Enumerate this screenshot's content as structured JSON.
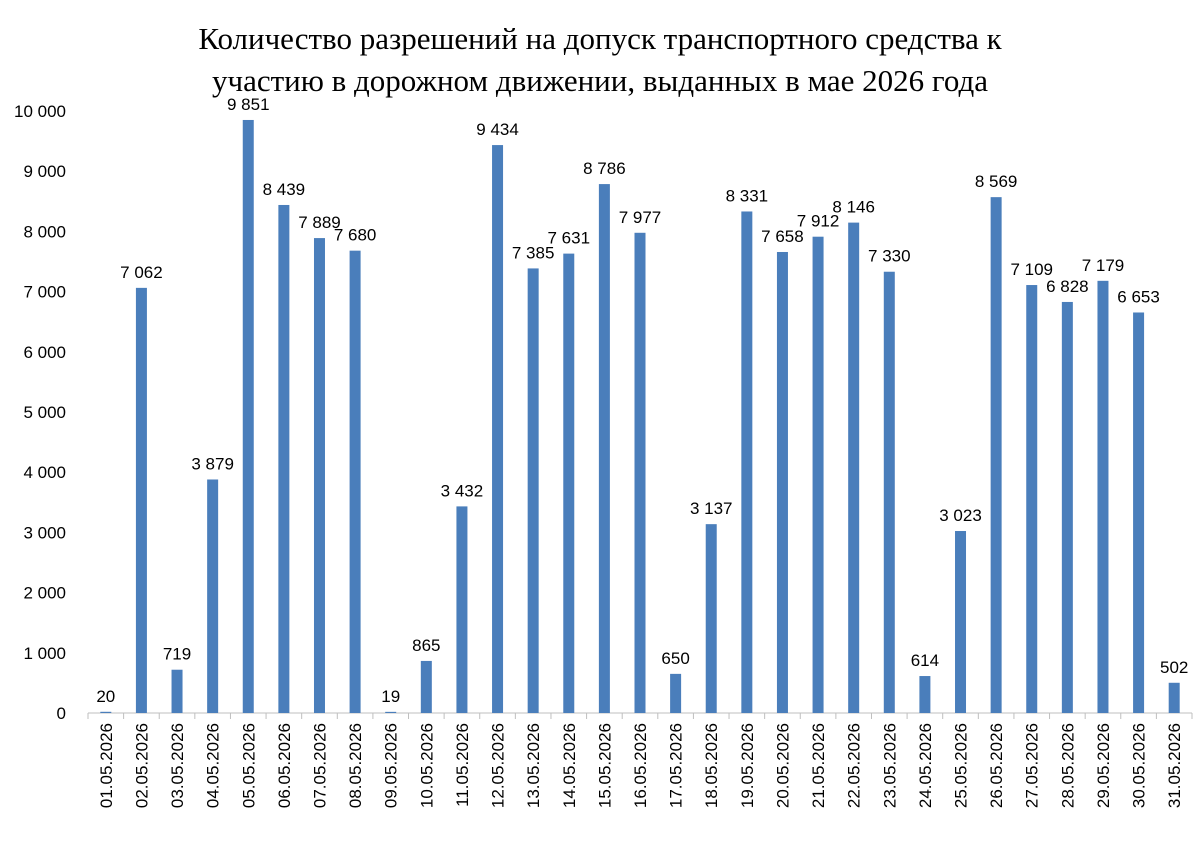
{
  "chart_data": {
    "type": "bar",
    "title_lines": [
      "Количество разрешений на допуск транспортного средства к",
      "участию в дорожном движении, выданных в мае 2026 года"
    ],
    "categories": [
      "01.05.2026",
      "02.05.2026",
      "03.05.2026",
      "04.05.2026",
      "05.05.2026",
      "06.05.2026",
      "07.05.2026",
      "08.05.2026",
      "09.05.2026",
      "10.05.2026",
      "11.05.2026",
      "12.05.2026",
      "13.05.2026",
      "14.05.2026",
      "15.05.2026",
      "16.05.2026",
      "17.05.2026",
      "18.05.2026",
      "19.05.2026",
      "20.05.2026",
      "21.05.2026",
      "22.05.2026",
      "23.05.2026",
      "24.05.2026",
      "25.05.2026",
      "26.05.2026",
      "27.05.2026",
      "28.05.2026",
      "29.05.2026",
      "30.05.2026",
      "31.05.2026"
    ],
    "values": [
      20,
      7062,
      719,
      3879,
      9851,
      8439,
      7889,
      7680,
      19,
      865,
      3432,
      9434,
      7385,
      7631,
      8786,
      7977,
      650,
      3137,
      8331,
      7658,
      7912,
      8146,
      7330,
      614,
      3023,
      8569,
      7109,
      6828,
      7179,
      6653,
      502
    ],
    "data_labels": [
      "20",
      "7 062",
      "719",
      "3 879",
      "9 851",
      "8 439",
      "7 889",
      "7 680",
      "19",
      "865",
      "3 432",
      "9 434",
      "7 385",
      "7 631",
      "8 786",
      "7 977",
      "650",
      "3 137",
      "8 331",
      "7 658",
      "7 912",
      "8 146",
      "7 330",
      "614",
      "3 023",
      "8 569",
      "7 109",
      "6 828",
      "7 179",
      "6 653",
      "502"
    ],
    "y_ticks": [
      0,
      1000,
      2000,
      3000,
      4000,
      5000,
      6000,
      7000,
      8000,
      9000,
      10000
    ],
    "y_tick_labels": [
      "0",
      "1 000",
      "2 000",
      "3 000",
      "4 000",
      "5 000",
      "6 000",
      "7 000",
      "8 000",
      "9 000",
      "10 000"
    ],
    "ylim": [
      0,
      10000
    ],
    "grid": false,
    "legend": "none",
    "bar_color": "#4a7ebb",
    "axis_color": "#bfbfbf"
  }
}
